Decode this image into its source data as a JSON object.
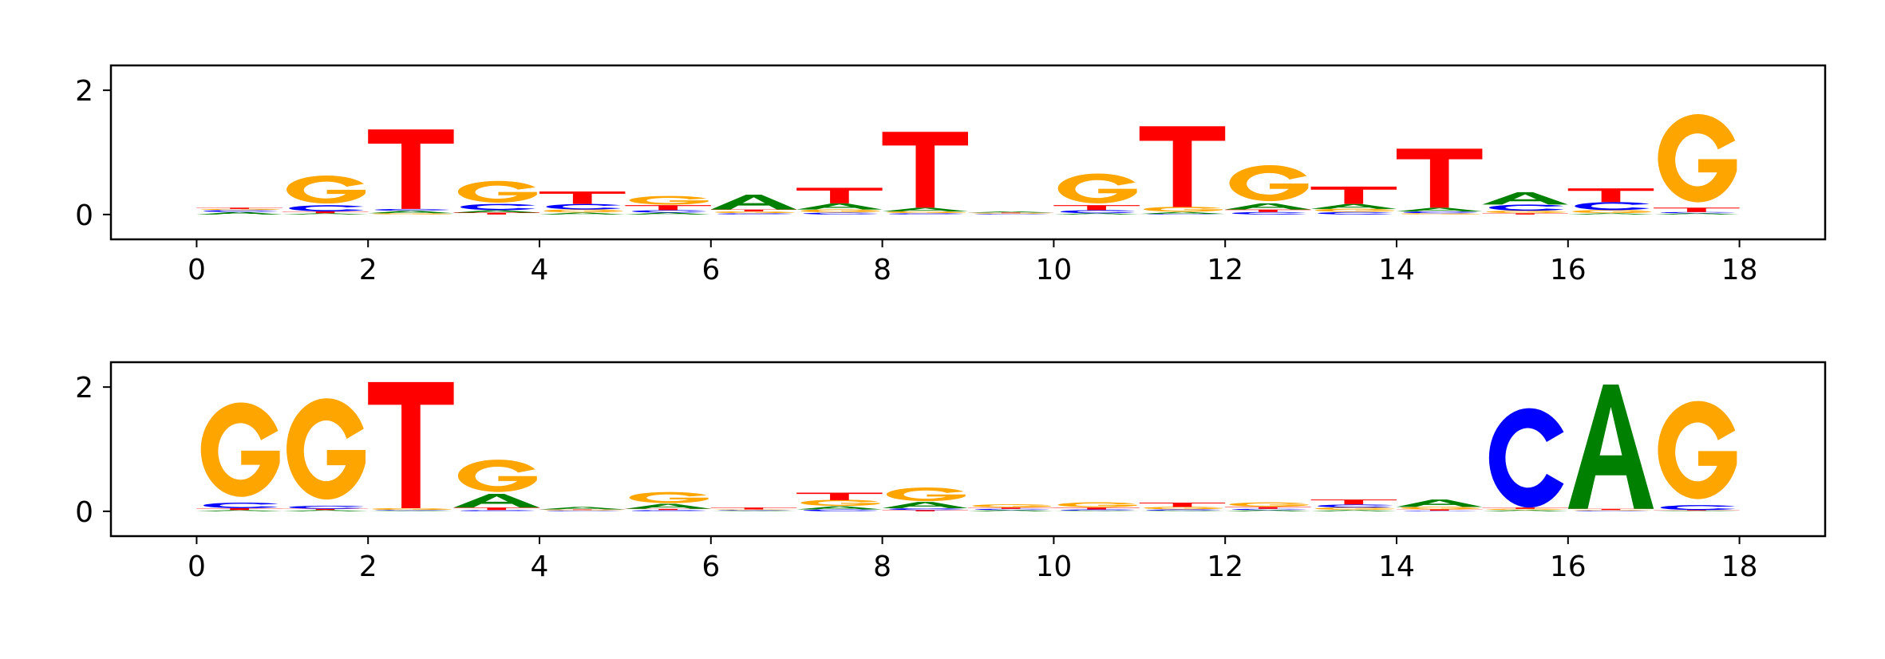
{
  "colors": {
    "A": "#008000",
    "C": "#0000ff",
    "G": "#ffa500",
    "T": "#ff0000"
  },
  "chart_data": [
    {
      "type": "sequence-logo",
      "xlim": [
        -1,
        19
      ],
      "ylim": [
        -0.4,
        2.4
      ],
      "x_ticks": [
        0,
        2,
        4,
        6,
        8,
        10,
        12,
        14,
        16,
        18
      ],
      "y_ticks": [
        0,
        2
      ],
      "positions": [
        {
          "x": 0.5,
          "letters": [
            {
              "base": "A",
              "height": 0.04
            },
            {
              "base": "C",
              "height": 0.03
            },
            {
              "base": "G",
              "height": 0.02
            },
            {
              "base": "T",
              "height": 0.02
            }
          ]
        },
        {
          "x": 1.5,
          "letters": [
            {
              "base": "A",
              "height": 0.02
            },
            {
              "base": "T",
              "height": 0.03
            },
            {
              "base": "C",
              "height": 0.1
            },
            {
              "base": "G",
              "height": 0.45
            }
          ]
        },
        {
          "x": 2.5,
          "letters": [
            {
              "base": "G",
              "height": 0.02
            },
            {
              "base": "A",
              "height": 0.04
            },
            {
              "base": "C",
              "height": 0.03
            },
            {
              "base": "T",
              "height": 1.28
            }
          ]
        },
        {
          "x": 3.5,
          "letters": [
            {
              "base": "T",
              "height": 0.03
            },
            {
              "base": "A",
              "height": 0.04
            },
            {
              "base": "C",
              "height": 0.1
            },
            {
              "base": "G",
              "height": 0.35
            }
          ]
        },
        {
          "x": 4.5,
          "letters": [
            {
              "base": "A",
              "height": 0.03
            },
            {
              "base": "G",
              "height": 0.05
            },
            {
              "base": "C",
              "height": 0.09
            },
            {
              "base": "T",
              "height": 0.2
            }
          ]
        },
        {
          "x": 5.5,
          "letters": [
            {
              "base": "A",
              "height": 0.03
            },
            {
              "base": "C",
              "height": 0.04
            },
            {
              "base": "T",
              "height": 0.08
            },
            {
              "base": "G",
              "height": 0.14
            }
          ]
        },
        {
          "x": 6.5,
          "letters": [
            {
              "base": "C",
              "height": 0.02
            },
            {
              "base": "G",
              "height": 0.03
            },
            {
              "base": "T",
              "height": 0.03
            },
            {
              "base": "A",
              "height": 0.24
            }
          ]
        },
        {
          "x": 7.5,
          "letters": [
            {
              "base": "C",
              "height": 0.03
            },
            {
              "base": "G",
              "height": 0.05
            },
            {
              "base": "A",
              "height": 0.1
            },
            {
              "base": "T",
              "height": 0.25
            }
          ]
        },
        {
          "x": 8.5,
          "letters": [
            {
              "base": "C",
              "height": 0.02
            },
            {
              "base": "G",
              "height": 0.03
            },
            {
              "base": "A",
              "height": 0.06
            },
            {
              "base": "T",
              "height": 1.22
            }
          ]
        },
        {
          "x": 9.5,
          "letters": [
            {
              "base": "C",
              "height": 0.01
            },
            {
              "base": "G",
              "height": 0.01
            },
            {
              "base": "T",
              "height": 0.01
            },
            {
              "base": "A",
              "height": 0.02
            }
          ]
        },
        {
          "x": 10.5,
          "letters": [
            {
              "base": "A",
              "height": 0.02
            },
            {
              "base": "C",
              "height": 0.05
            },
            {
              "base": "T",
              "height": 0.08
            },
            {
              "base": "G",
              "height": 0.48
            }
          ]
        },
        {
          "x": 11.5,
          "letters": [
            {
              "base": "C",
              "height": 0.01
            },
            {
              "base": "A",
              "height": 0.03
            },
            {
              "base": "G",
              "height": 0.08
            },
            {
              "base": "T",
              "height": 1.3
            }
          ]
        },
        {
          "x": 12.5,
          "letters": [
            {
              "base": "C",
              "height": 0.04
            },
            {
              "base": "T",
              "height": 0.04
            },
            {
              "base": "A",
              "height": 0.1
            },
            {
              "base": "G",
              "height": 0.58
            }
          ]
        },
        {
          "x": 13.5,
          "letters": [
            {
              "base": "C",
              "height": 0.04
            },
            {
              "base": "G",
              "height": 0.05
            },
            {
              "base": "A",
              "height": 0.08
            },
            {
              "base": "T",
              "height": 0.28
            }
          ]
        },
        {
          "x": 14.5,
          "letters": [
            {
              "base": "G",
              "height": 0.02
            },
            {
              "base": "C",
              "height": 0.03
            },
            {
              "base": "A",
              "height": 0.06
            },
            {
              "base": "T",
              "height": 0.95
            }
          ]
        },
        {
          "x": 15.5,
          "letters": [
            {
              "base": "T",
              "height": 0.02
            },
            {
              "base": "G",
              "height": 0.04
            },
            {
              "base": "C",
              "height": 0.1
            },
            {
              "base": "A",
              "height": 0.2
            }
          ]
        },
        {
          "x": 16.5,
          "letters": [
            {
              "base": "A",
              "height": 0.02
            },
            {
              "base": "G",
              "height": 0.05
            },
            {
              "base": "C",
              "height": 0.13
            },
            {
              "base": "T",
              "height": 0.22
            }
          ]
        },
        {
          "x": 17.5,
          "letters": [
            {
              "base": "A",
              "height": 0.02
            },
            {
              "base": "C",
              "height": 0.02
            },
            {
              "base": "T",
              "height": 0.07
            },
            {
              "base": "G",
              "height": 1.42
            }
          ]
        }
      ]
    },
    {
      "type": "sequence-logo",
      "xlim": [
        -1,
        19
      ],
      "ylim": [
        -0.4,
        2.4
      ],
      "x_ticks": [
        0,
        2,
        4,
        6,
        8,
        10,
        12,
        14,
        16,
        18
      ],
      "y_ticks": [
        0,
        2
      ],
      "positions": [
        {
          "x": 0.5,
          "letters": [
            {
              "base": "A",
              "height": 0.02
            },
            {
              "base": "T",
              "height": 0.03
            },
            {
              "base": "C",
              "height": 0.09
            },
            {
              "base": "G",
              "height": 1.52
            }
          ]
        },
        {
          "x": 1.5,
          "letters": [
            {
              "base": "A",
              "height": 0.02
            },
            {
              "base": "T",
              "height": 0.02
            },
            {
              "base": "C",
              "height": 0.05
            },
            {
              "base": "G",
              "height": 1.63
            }
          ]
        },
        {
          "x": 2.5,
          "letters": [
            {
              "base": "A",
              "height": 0.01
            },
            {
              "base": "C",
              "height": 0.01
            },
            {
              "base": "G",
              "height": 0.03
            },
            {
              "base": "T",
              "height": 2.03
            }
          ]
        },
        {
          "x": 3.5,
          "letters": [
            {
              "base": "C",
              "height": 0.02
            },
            {
              "base": "T",
              "height": 0.04
            },
            {
              "base": "A",
              "height": 0.22
            },
            {
              "base": "G",
              "height": 0.52
            }
          ]
        },
        {
          "x": 4.5,
          "letters": [
            {
              "base": "C",
              "height": 0.01
            },
            {
              "base": "G",
              "height": 0.01
            },
            {
              "base": "T",
              "height": 0.01
            },
            {
              "base": "A",
              "height": 0.04
            }
          ]
        },
        {
          "x": 5.5,
          "letters": [
            {
              "base": "C",
              "height": 0.02
            },
            {
              "base": "T",
              "height": 0.02
            },
            {
              "base": "A",
              "height": 0.08
            },
            {
              "base": "G",
              "height": 0.18
            }
          ]
        },
        {
          "x": 6.5,
          "letters": [
            {
              "base": "A",
              "height": 0.01
            },
            {
              "base": "C",
              "height": 0.01
            },
            {
              "base": "G",
              "height": 0.01
            },
            {
              "base": "T",
              "height": 0.03
            }
          ]
        },
        {
          "x": 7.5,
          "letters": [
            {
              "base": "C",
              "height": 0.03
            },
            {
              "base": "A",
              "height": 0.05
            },
            {
              "base": "G",
              "height": 0.1
            },
            {
              "base": "T",
              "height": 0.12
            }
          ]
        },
        {
          "x": 8.5,
          "letters": [
            {
              "base": "T",
              "height": 0.02
            },
            {
              "base": "C",
              "height": 0.03
            },
            {
              "base": "A",
              "height": 0.1
            },
            {
              "base": "G",
              "height": 0.22
            }
          ]
        },
        {
          "x": 9.5,
          "letters": [
            {
              "base": "A",
              "height": 0.02
            },
            {
              "base": "C",
              "height": 0.02
            },
            {
              "base": "T",
              "height": 0.02
            },
            {
              "base": "G",
              "height": 0.05
            }
          ]
        },
        {
          "x": 10.5,
          "letters": [
            {
              "base": "A",
              "height": 0.01
            },
            {
              "base": "C",
              "height": 0.02
            },
            {
              "base": "T",
              "height": 0.03
            },
            {
              "base": "G",
              "height": 0.08
            }
          ]
        },
        {
          "x": 11.5,
          "letters": [
            {
              "base": "A",
              "height": 0.01
            },
            {
              "base": "C",
              "height": 0.02
            },
            {
              "base": "G",
              "height": 0.04
            },
            {
              "base": "T",
              "height": 0.07
            }
          ]
        },
        {
          "x": 12.5,
          "letters": [
            {
              "base": "A",
              "height": 0.02
            },
            {
              "base": "C",
              "height": 0.02
            },
            {
              "base": "T",
              "height": 0.03
            },
            {
              "base": "G",
              "height": 0.07
            }
          ]
        },
        {
          "x": 13.5,
          "letters": [
            {
              "base": "A",
              "height": 0.02
            },
            {
              "base": "G",
              "height": 0.04
            },
            {
              "base": "C",
              "height": 0.05
            },
            {
              "base": "T",
              "height": 0.08
            }
          ]
        },
        {
          "x": 14.5,
          "letters": [
            {
              "base": "C",
              "height": 0.01
            },
            {
              "base": "T",
              "height": 0.02
            },
            {
              "base": "G",
              "height": 0.04
            },
            {
              "base": "A",
              "height": 0.12
            }
          ]
        },
        {
          "x": 15.5,
          "letters": [
            {
              "base": "A",
              "height": 0.02
            },
            {
              "base": "G",
              "height": 0.02
            },
            {
              "base": "T",
              "height": 0.02
            },
            {
              "base": "C",
              "height": 1.6
            }
          ]
        },
        {
          "x": 16.5,
          "letters": [
            {
              "base": "C",
              "height": 0.01
            },
            {
              "base": "G",
              "height": 0.01
            },
            {
              "base": "T",
              "height": 0.02
            },
            {
              "base": "A",
              "height": 2.0
            }
          ]
        },
        {
          "x": 17.5,
          "letters": [
            {
              "base": "A",
              "height": 0.01
            },
            {
              "base": "T",
              "height": 0.01
            },
            {
              "base": "C",
              "height": 0.08
            },
            {
              "base": "G",
              "height": 1.58
            }
          ]
        }
      ]
    }
  ]
}
